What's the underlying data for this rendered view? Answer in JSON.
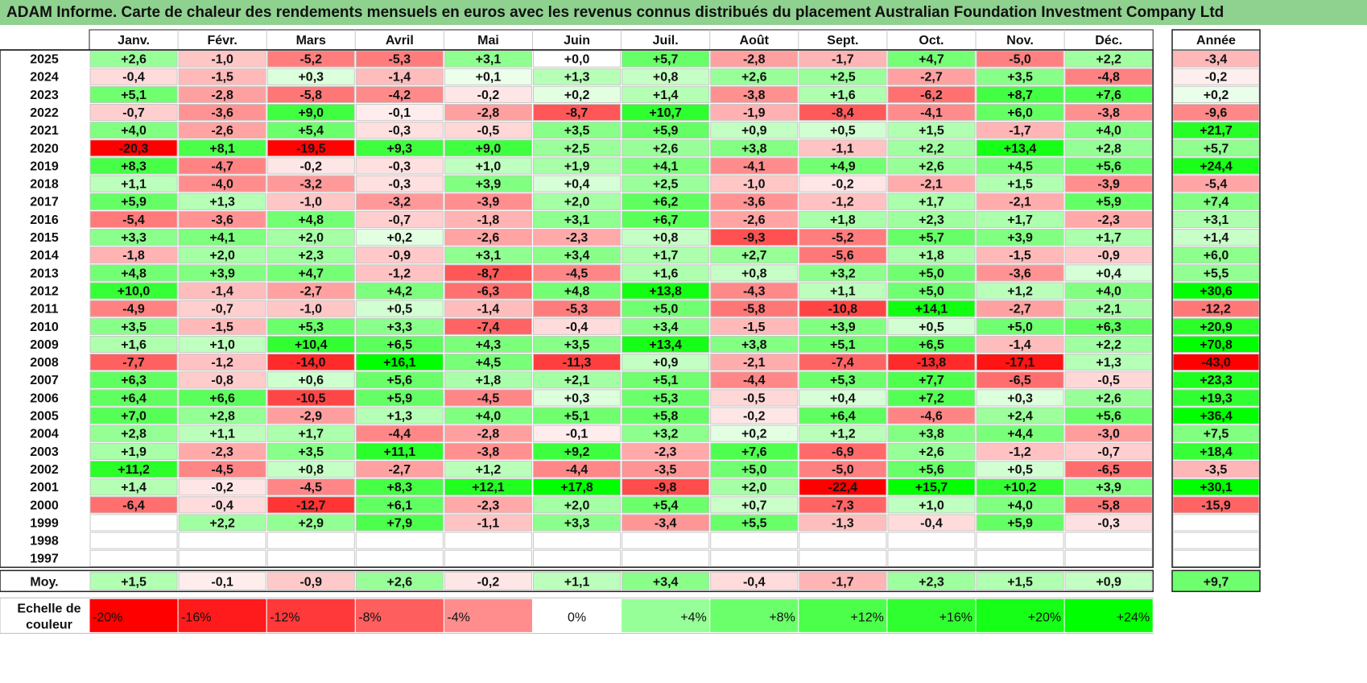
{
  "title": "ADAM Informe. Carte de chaleur des rendements mensuels en euros avec les revenus connus distribués du placement Australian Foundation Investment Company Ltd",
  "chart_data": {
    "type": "heatmap",
    "months": [
      "Janv.",
      "Févr.",
      "Mars",
      "Avril",
      "Mai",
      "Juin",
      "Juil.",
      "Août",
      "Sept.",
      "Oct.",
      "Nov.",
      "Déc."
    ],
    "annual_header": "Année",
    "rows": [
      {
        "year": "2025",
        "values": [
          "+2,6",
          "-1,0",
          "-5,2",
          "-5,3",
          "+3,1",
          "+0,0",
          "+5,7",
          "-2,8",
          "-1,7",
          "+4,7",
          "-5,0",
          "+2,2"
        ],
        "annual": "-3,4"
      },
      {
        "year": "2024",
        "values": [
          "-0,4",
          "-1,5",
          "+0,3",
          "-1,4",
          "+0,1",
          "+1,3",
          "+0,8",
          "+2,6",
          "+2,5",
          "-2,7",
          "+3,5",
          "-4,8"
        ],
        "annual": "-0,2"
      },
      {
        "year": "2023",
        "values": [
          "+5,1",
          "-2,8",
          "-5,8",
          "-4,2",
          "-0,2",
          "+0,2",
          "+1,4",
          "-3,8",
          "+1,6",
          "-6,2",
          "+8,7",
          "+7,6"
        ],
        "annual": "+0,2"
      },
      {
        "year": "2022",
        "values": [
          "-0,7",
          "-3,6",
          "+9,0",
          "-0,1",
          "-2,8",
          "-8,7",
          "+10,7",
          "-1,9",
          "-8,4",
          "-4,1",
          "+6,0",
          "-3,8"
        ],
        "annual": "-9,6"
      },
      {
        "year": "2021",
        "values": [
          "+4,0",
          "-2,6",
          "+5,4",
          "-0,3",
          "-0,5",
          "+3,5",
          "+5,9",
          "+0,9",
          "+0,5",
          "+1,5",
          "-1,7",
          "+4,0"
        ],
        "annual": "+21,7"
      },
      {
        "year": "2020",
        "values": [
          "-20,3",
          "+8,1",
          "-19,5",
          "+9,3",
          "+9,0",
          "+2,5",
          "+2,6",
          "+3,8",
          "-1,1",
          "+2,2",
          "+13,4",
          "+2,8"
        ],
        "annual": "+5,7"
      },
      {
        "year": "2019",
        "values": [
          "+8,3",
          "-4,7",
          "-0,2",
          "-0,3",
          "+1,0",
          "+1,9",
          "+4,1",
          "-4,1",
          "+4,9",
          "+2,6",
          "+4,5",
          "+5,6"
        ],
        "annual": "+24,4"
      },
      {
        "year": "2018",
        "values": [
          "+1,1",
          "-4,0",
          "-3,2",
          "-0,3",
          "+3,9",
          "+0,4",
          "+2,5",
          "-1,0",
          "-0,2",
          "-2,1",
          "+1,5",
          "-3,9"
        ],
        "annual": "-5,4"
      },
      {
        "year": "2017",
        "values": [
          "+5,9",
          "+1,3",
          "-1,0",
          "-3,2",
          "-3,9",
          "+2,0",
          "+6,2",
          "-3,6",
          "-1,2",
          "+1,7",
          "-2,1",
          "+5,9"
        ],
        "annual": "+7,4"
      },
      {
        "year": "2016",
        "values": [
          "-5,4",
          "-3,6",
          "+4,8",
          "-0,7",
          "-1,8",
          "+3,1",
          "+6,7",
          "-2,6",
          "+1,8",
          "+2,3",
          "+1,7",
          "-2,3"
        ],
        "annual": "+3,1"
      },
      {
        "year": "2015",
        "values": [
          "+3,3",
          "+4,1",
          "+2,0",
          "+0,2",
          "-2,6",
          "-2,3",
          "+0,8",
          "-9,3",
          "-5,2",
          "+5,7",
          "+3,9",
          "+1,7"
        ],
        "annual": "+1,4"
      },
      {
        "year": "2014",
        "values": [
          "-1,8",
          "+2,0",
          "+2,3",
          "-0,9",
          "+3,1",
          "+3,4",
          "+1,7",
          "+2,7",
          "-5,6",
          "+1,8",
          "-1,5",
          "-0,9"
        ],
        "annual": "+6,0"
      },
      {
        "year": "2013",
        "values": [
          "+4,8",
          "+3,9",
          "+4,7",
          "-1,2",
          "-8,7",
          "-4,5",
          "+1,6",
          "+0,8",
          "+3,2",
          "+5,0",
          "-3,6",
          "+0,4"
        ],
        "annual": "+5,5"
      },
      {
        "year": "2012",
        "values": [
          "+10,0",
          "-1,4",
          "-2,7",
          "+4,2",
          "-6,3",
          "+4,8",
          "+13,8",
          "-4,3",
          "+1,1",
          "+5,0",
          "+1,2",
          "+4,0"
        ],
        "annual": "+30,6"
      },
      {
        "year": "2011",
        "values": [
          "-4,9",
          "-0,7",
          "-1,0",
          "+0,5",
          "-1,4",
          "-5,3",
          "+5,0",
          "-5,8",
          "-10,8",
          "+14,1",
          "-2,7",
          "+2,1"
        ],
        "annual": "-12,2"
      },
      {
        "year": "2010",
        "values": [
          "+3,5",
          "-1,5",
          "+5,3",
          "+3,3",
          "-7,4",
          "-0,4",
          "+3,4",
          "-1,5",
          "+3,9",
          "+0,5",
          "+5,0",
          "+6,3"
        ],
        "annual": "+20,9"
      },
      {
        "year": "2009",
        "values": [
          "+1,6",
          "+1,0",
          "+10,4",
          "+6,5",
          "+4,3",
          "+3,5",
          "+13,4",
          "+3,8",
          "+5,1",
          "+6,5",
          "-1,4",
          "+2,2"
        ],
        "annual": "+70,8"
      },
      {
        "year": "2008",
        "values": [
          "-7,7",
          "-1,2",
          "-14,0",
          "+16,1",
          "+4,5",
          "-11,3",
          "+0,9",
          "-2,1",
          "-7,4",
          "-13,8",
          "-17,1",
          "+1,3"
        ],
        "annual": "-43,0"
      },
      {
        "year": "2007",
        "values": [
          "+6,3",
          "-0,8",
          "+0,6",
          "+5,6",
          "+1,8",
          "+2,1",
          "+5,1",
          "-4,4",
          "+5,3",
          "+7,7",
          "-6,5",
          "-0,5"
        ],
        "annual": "+23,3"
      },
      {
        "year": "2006",
        "values": [
          "+6,4",
          "+6,6",
          "-10,5",
          "+5,9",
          "-4,5",
          "+0,3",
          "+5,3",
          "-0,5",
          "+0,4",
          "+7,2",
          "+0,3",
          "+2,6"
        ],
        "annual": "+19,3"
      },
      {
        "year": "2005",
        "values": [
          "+7,0",
          "+2,8",
          "-2,9",
          "+1,3",
          "+4,0",
          "+5,1",
          "+5,8",
          "-0,2",
          "+6,4",
          "-4,6",
          "+2,4",
          "+5,6"
        ],
        "annual": "+36,4"
      },
      {
        "year": "2004",
        "values": [
          "+2,8",
          "+1,1",
          "+1,7",
          "-4,4",
          "-2,8",
          "-0,1",
          "+3,2",
          "+0,2",
          "+1,2",
          "+3,8",
          "+4,4",
          "-3,0"
        ],
        "annual": "+7,5"
      },
      {
        "year": "2003",
        "values": [
          "+1,9",
          "-2,3",
          "+3,5",
          "+11,1",
          "-3,8",
          "+9,2",
          "-2,3",
          "+7,6",
          "-6,9",
          "+2,6",
          "-1,2",
          "-0,7"
        ],
        "annual": "+18,4"
      },
      {
        "year": "2002",
        "values": [
          "+11,2",
          "-4,5",
          "+0,8",
          "-2,7",
          "+1,2",
          "-4,4",
          "-3,5",
          "+5,0",
          "-5,0",
          "+5,6",
          "+0,5",
          "-6,5"
        ],
        "annual": "-3,5"
      },
      {
        "year": "2001",
        "values": [
          "+1,4",
          "-0,2",
          "-4,5",
          "+8,3",
          "+12,1",
          "+17,8",
          "-9,8",
          "+2,0",
          "-22,4",
          "+15,7",
          "+10,2",
          "+3,9"
        ],
        "annual": "+30,1"
      },
      {
        "year": "2000",
        "values": [
          "-6,4",
          "-0,4",
          "-12,7",
          "+6,1",
          "-2,3",
          "+2,0",
          "+5,4",
          "+0,7",
          "-7,3",
          "+1,0",
          "+4,0",
          "-5,8"
        ],
        "annual": "-15,9"
      },
      {
        "year": "1999",
        "values": [
          "",
          "+2,2",
          "+2,9",
          "+7,9",
          "-1,1",
          "+3,3",
          "-3,4",
          "+5,5",
          "-1,3",
          "-0,4",
          "+5,9",
          "-0,3"
        ],
        "annual": ""
      },
      {
        "year": "1998",
        "values": [
          "",
          "",
          "",
          "",
          "",
          "",
          "",
          "",
          "",
          "",
          "",
          ""
        ],
        "annual": ""
      },
      {
        "year": "1997",
        "values": [
          "",
          "",
          "",
          "",
          "",
          "",
          "",
          "",
          "",
          "",
          "",
          ""
        ],
        "annual": ""
      }
    ],
    "average": {
      "label": "Moy.",
      "values": [
        "+1,5",
        "-0,1",
        "-0,9",
        "+2,6",
        "-0,2",
        "+1,1",
        "+3,4",
        "-0,4",
        "-1,7",
        "+2,3",
        "+1,5",
        "+0,9"
      ],
      "annual": "+9,7"
    },
    "scale": {
      "label_line1": "Echelle de",
      "label_line2": "couleur",
      "stops": [
        "-20%",
        "-16%",
        "-12%",
        "-8%",
        "-4%",
        "0%",
        "+4%",
        "+8%",
        "+12%",
        "+16%",
        "+20%",
        "+24%"
      ]
    },
    "colors": {
      "negative": "#ff0000",
      "neutral": "#ffffff",
      "positive": "#00ff00"
    }
  }
}
